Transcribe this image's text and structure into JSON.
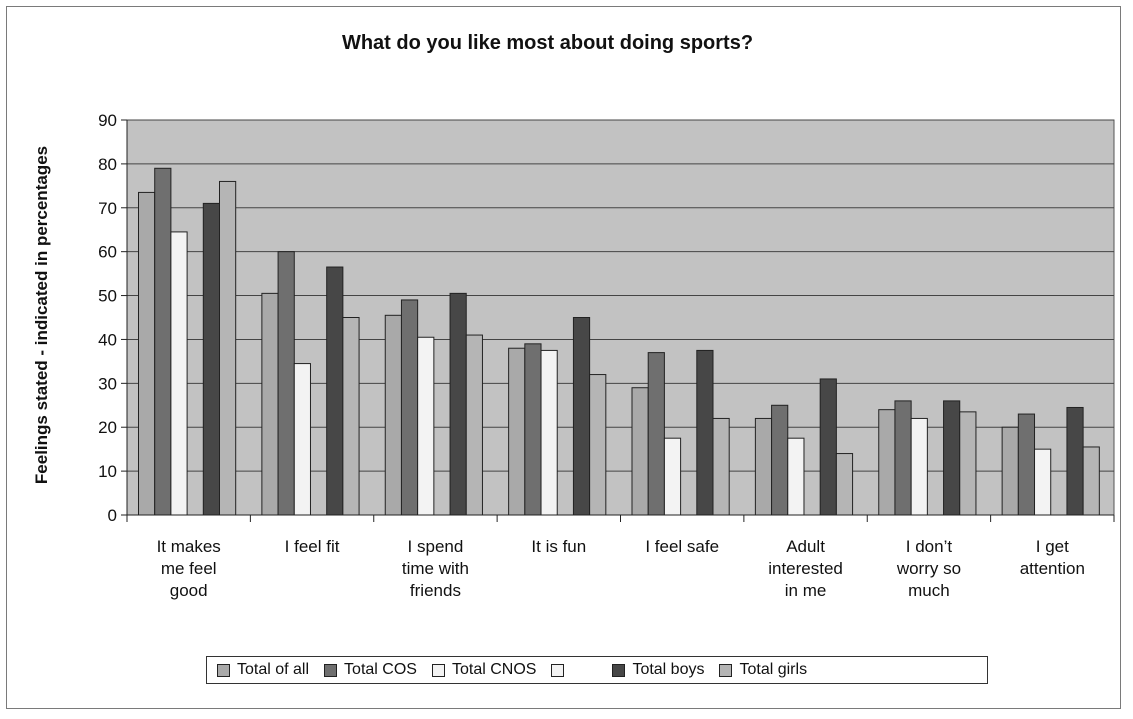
{
  "chart_data": {
    "type": "bar",
    "title": "What do you like most about doing sports?",
    "ylabel": "Feelings stated - indicated in percentages",
    "xlabel": "",
    "ylim": [
      0,
      90
    ],
    "yticks": [
      0,
      10,
      20,
      30,
      40,
      50,
      60,
      70,
      80,
      90
    ],
    "grid": true,
    "legend_position": "bottom",
    "categories": [
      [
        "It makes",
        "me feel",
        "good"
      ],
      [
        "I feel fit"
      ],
      [
        "I spend",
        "time with",
        "friends"
      ],
      [
        "It is fun"
      ],
      [
        "I feel safe"
      ],
      [
        "Adult",
        "interested",
        "in me"
      ],
      [
        "I don’t",
        "worry so",
        "much"
      ],
      [
        "I get",
        "attention"
      ]
    ],
    "series": [
      {
        "name": "Total of all",
        "color": "#a9a9a9",
        "values": [
          73.5,
          50.5,
          45.5,
          38,
          29,
          22,
          24,
          20
        ]
      },
      {
        "name": "Total COS",
        "color": "#6f6f6f",
        "values": [
          79,
          60,
          49,
          39,
          37,
          25,
          26,
          23
        ]
      },
      {
        "name": "Total CNOS",
        "color": "#f3f3f3",
        "values": [
          64.5,
          34.5,
          40.5,
          37.5,
          17.5,
          17.5,
          22,
          15
        ]
      },
      {
        "name": "",
        "color": "#f3f3f3",
        "values": [
          null,
          null,
          null,
          null,
          null,
          null,
          null,
          null
        ]
      },
      {
        "name": "Total boys",
        "color": "#474747",
        "values": [
          71,
          56.5,
          50.5,
          45,
          37.5,
          31,
          26,
          24.5
        ]
      },
      {
        "name": "Total girls",
        "color": "#b5b5b5",
        "values": [
          76,
          45,
          41,
          32,
          22,
          14,
          23.5,
          15.5
        ]
      }
    ],
    "plot_background": "#c2c2c2"
  }
}
